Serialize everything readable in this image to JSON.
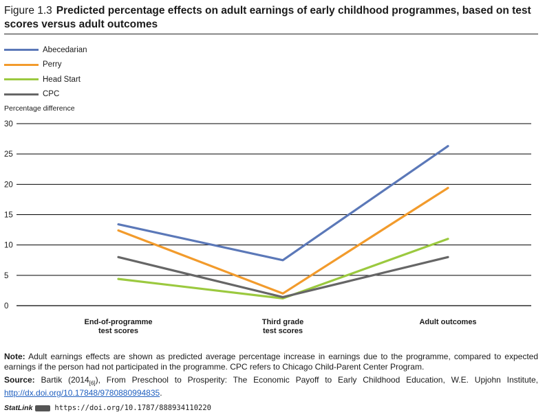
{
  "figure": {
    "number": "Figure 1.3",
    "title": "Predicted percentage effects on adult earnings of early childhood programmes, based on test scores versus adult outcomes"
  },
  "chart_data": {
    "type": "line",
    "title": "Predicted percentage effects on adult earnings of early childhood programmes, based on test scores versus adult outcomes",
    "ylabel": "Percentage difference",
    "xlabel": "",
    "categories": [
      [
        "End-of-programme",
        "test scores"
      ],
      [
        "Third grade",
        "test scores"
      ],
      [
        "Adult outcomes"
      ]
    ],
    "ylim": [
      0,
      30
    ],
    "yticks": [
      0,
      5,
      10,
      15,
      20,
      25,
      30
    ],
    "grid": "horizontal",
    "legend_position": "top-left",
    "series": [
      {
        "name": "Abecedarian",
        "color": "#5b78b8",
        "values": [
          13.4,
          7.5,
          26.3
        ]
      },
      {
        "name": "Perry",
        "color": "#f29b2c",
        "values": [
          12.4,
          2.0,
          19.4
        ]
      },
      {
        "name": "Head Start",
        "color": "#9bc93f",
        "values": [
          4.4,
          1.2,
          11.0
        ]
      },
      {
        "name": "CPC",
        "color": "#666666",
        "values": [
          8.0,
          1.4,
          8.0
        ]
      }
    ]
  },
  "note": {
    "label": "Note:",
    "text": "Adult earnings effects are shown as predicted average percentage increase in earnings due to the programme, compared to expected earnings if the person had not participated in the programme. CPC refers to Chicago Child-Parent Center Program."
  },
  "source": {
    "label": "Source:",
    "author": "Bartik (2014",
    "ref": "[6]",
    "text": "), From Preschool to Prosperity: The Economic Payoff to Early Childhood Education, W.E. Upjohn Institute,",
    "link": "http://dx.doi.org/10.17848/9780880994835",
    "after_link": "."
  },
  "statlink": {
    "brand": "StatLink",
    "url": "https://doi.org/10.1787/888934110220"
  }
}
